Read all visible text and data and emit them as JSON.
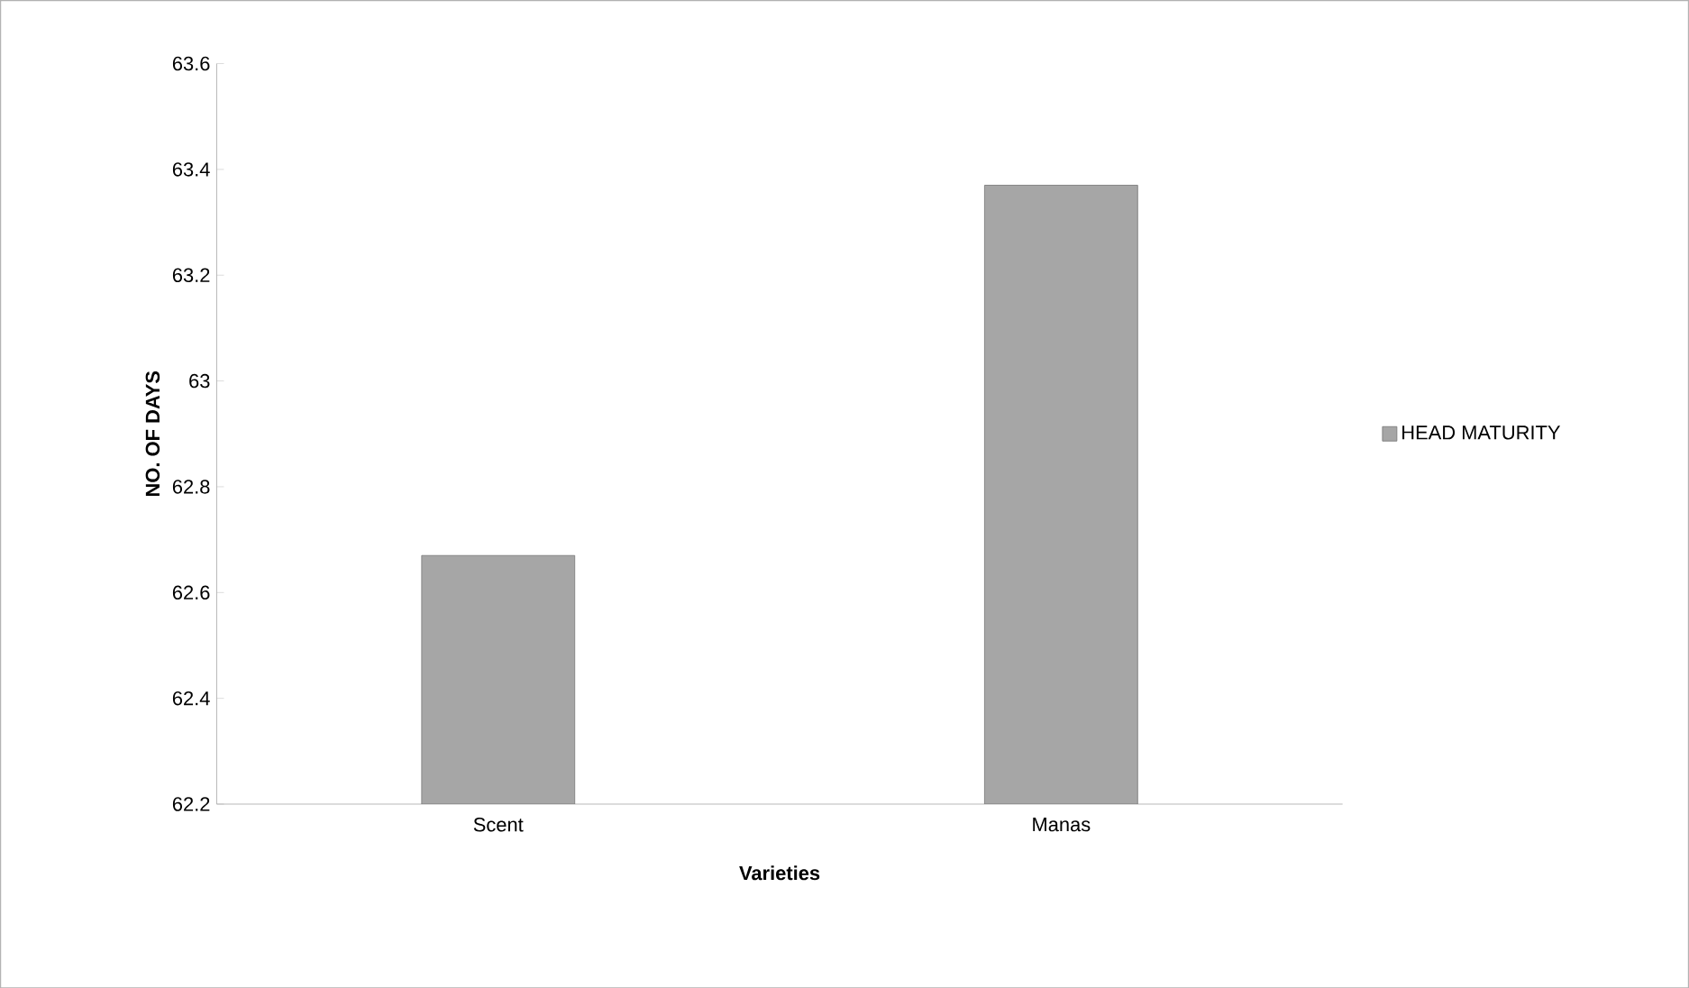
{
  "chart_data": {
    "type": "bar",
    "xlabel": "Varieties",
    "ylabel": "NO. OF DAYS",
    "categories": [
      "Scent",
      "Manas"
    ],
    "series": [
      {
        "name": "HEAD MATURITY",
        "color": "#a6a6a6",
        "values": [
          62.67,
          63.37
        ]
      }
    ],
    "ylim": [
      62.2,
      63.6
    ],
    "yticks": [
      62.2,
      62.4,
      62.6,
      62.8,
      63,
      63.2,
      63.4,
      63.6
    ],
    "legend": "right"
  }
}
